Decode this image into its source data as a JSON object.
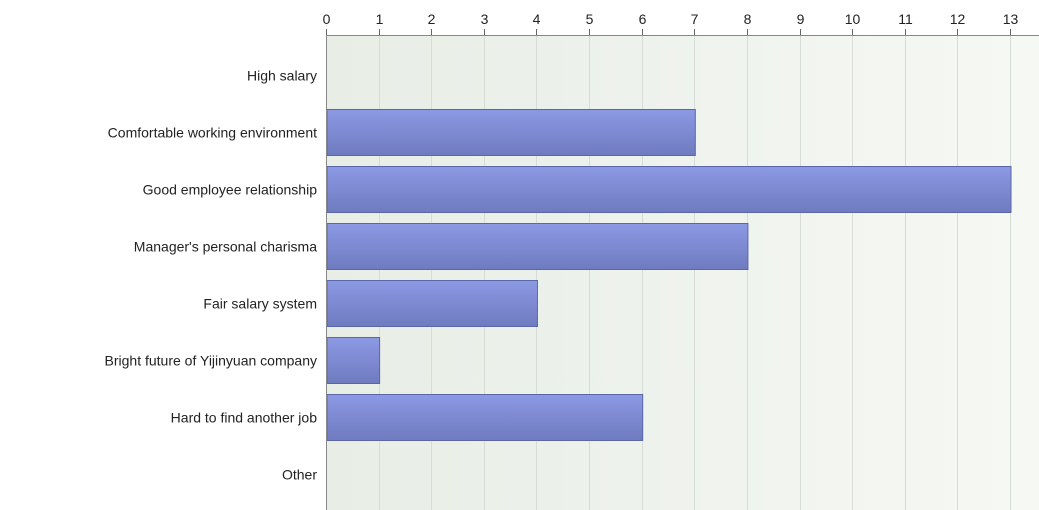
{
  "chart_data": {
    "type": "bar",
    "orientation": "horizontal",
    "categories": [
      "High salary",
      "Comfortable working environment",
      "Good employee relationship",
      "Manager's personal charisma",
      "Fair salary system",
      "Bright future of Yijinyuan company",
      "Hard to find another job",
      "Other"
    ],
    "values": [
      0,
      7,
      13,
      8,
      4,
      1,
      6,
      0
    ],
    "xlim": [
      0,
      13
    ],
    "xticks": [
      "0",
      "1",
      "2",
      "3",
      "4",
      "5",
      "6",
      "7",
      "8",
      "9",
      "10",
      "11",
      "12",
      "13"
    ],
    "x_axis_position": "top",
    "grid": true,
    "colors": {
      "bar_top": "#8c99e4",
      "bar_bottom": "#6f7bbf",
      "plot_bg_left": "#e8ede6",
      "plot_bg_right": "#f6f8f4",
      "grid": "#d6ddd6"
    }
  }
}
